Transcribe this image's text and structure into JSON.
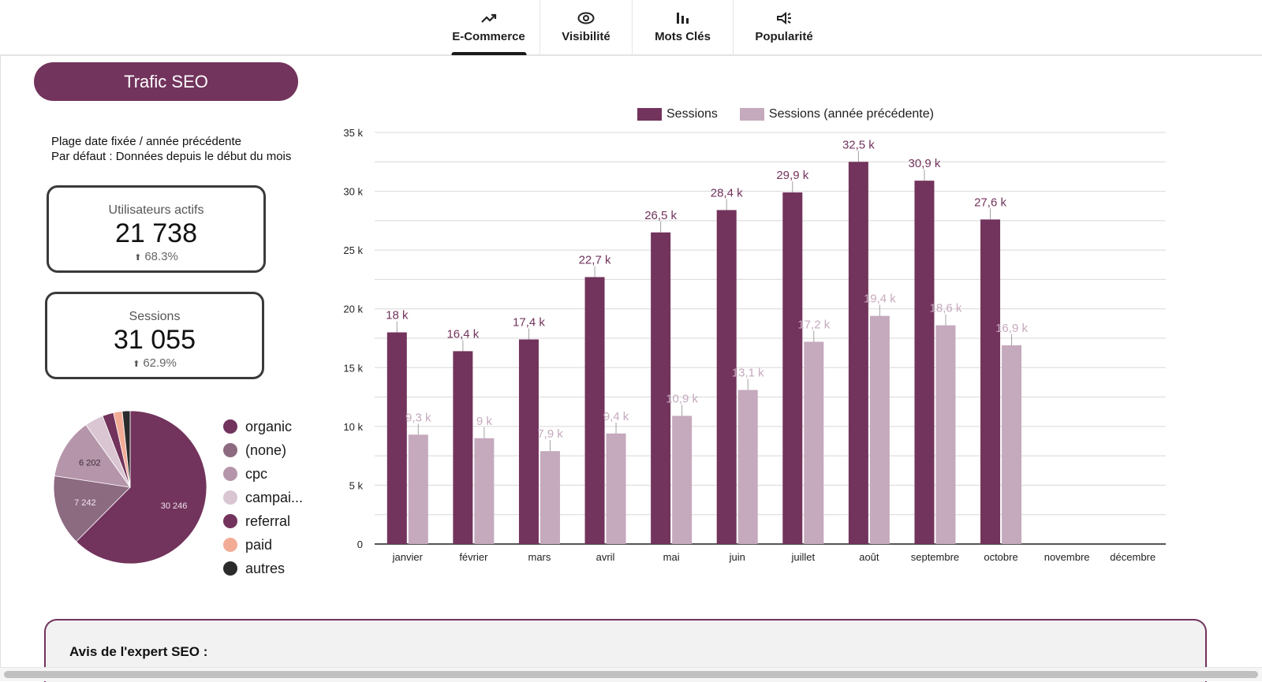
{
  "tabs": [
    {
      "label": "E-Commerce",
      "icon": "trending-up-icon",
      "active": true
    },
    {
      "label": "Visibilité",
      "icon": "eye-icon",
      "active": false
    },
    {
      "label": "Mots Clés",
      "icon": "bar-chart-icon",
      "active": false
    },
    {
      "label": "Popularité",
      "icon": "megaphone-icon",
      "active": false
    }
  ],
  "section_title": "Trafic SEO",
  "note": {
    "line1": "Plage date fixée / année précédente",
    "line2": "Par défaut : Données depuis le début du mois"
  },
  "kpis": [
    {
      "label": "Utilisateurs actifs",
      "value": "21 738",
      "delta": "68.3%",
      "arrow": "⬆"
    },
    {
      "label": "Sessions",
      "value": "31 055",
      "delta": "62.9%",
      "arrow": "⬆"
    }
  ],
  "colors": {
    "primary": "#72335c",
    "secondary": "#c5a9bd",
    "gridline": "#d8d8d8",
    "axis": "#555555"
  },
  "chart_data": [
    {
      "type": "pie",
      "title": "Sources de trafic",
      "slices": [
        {
          "label": "organic",
          "value": 30246,
          "color": "#72335c",
          "show_label": true
        },
        {
          "label": "(none)",
          "value": 7242,
          "color": "#8c6a80",
          "show_label": true
        },
        {
          "label": "cpc",
          "value": 6202,
          "color": "#b595a9",
          "show_label": true
        },
        {
          "label": "campai...",
          "value": 1900,
          "color": "#d9c6d2",
          "show_label": false
        },
        {
          "label": "referral",
          "value": 1150,
          "color": "#72335c",
          "show_label": false
        },
        {
          "label": "paid",
          "value": 900,
          "color": "#f2ac96",
          "show_label": false
        },
        {
          "label": "autres",
          "value": 800,
          "color": "#2b2b2b",
          "show_label": false
        }
      ],
      "legend_position": "right"
    },
    {
      "type": "bar",
      "title": "",
      "categories": [
        "janvier",
        "février",
        "mars",
        "avril",
        "mai",
        "juin",
        "juillet",
        "août",
        "septembre",
        "octobre",
        "novembre",
        "décembre"
      ],
      "series": [
        {
          "name": "Sessions",
          "color": "#72335c",
          "values": [
            18000,
            16400,
            17400,
            22700,
            26500,
            28400,
            29900,
            32500,
            30900,
            27600,
            null,
            null
          ],
          "labels": [
            "18 k",
            "16,4 k",
            "17,4 k",
            "22,7 k",
            "26,5 k",
            "28,4 k",
            "29,9 k",
            "32,5 k",
            "30,9 k",
            "27,6 k",
            "",
            ""
          ]
        },
        {
          "name": "Sessions (année précédente)",
          "color": "#c5a9bd",
          "values": [
            9300,
            9000,
            7900,
            9400,
            10900,
            13100,
            17200,
            19400,
            18600,
            16900,
            null,
            null
          ],
          "labels": [
            "9,3 k",
            "9 k",
            "7,9 k",
            "9,4 k",
            "10,9 k",
            "13,1 k",
            "17,2 k",
            "19,4 k",
            "18,6 k",
            "16,9 k",
            "",
            ""
          ]
        }
      ],
      "xlabel": "",
      "ylabel": "",
      "ylim": [
        0,
        35000
      ],
      "yticks": [
        0,
        5000,
        10000,
        15000,
        20000,
        25000,
        30000,
        35000
      ],
      "ytick_labels": [
        "0",
        "5 k",
        "10 k",
        "15 k",
        "20 k",
        "25 k",
        "30 k",
        "35 k"
      ],
      "minor_grid_step": 2500,
      "grid": true,
      "legend_position": "top-center"
    }
  ],
  "expert": {
    "title": "Avis de l'expert SEO :"
  }
}
